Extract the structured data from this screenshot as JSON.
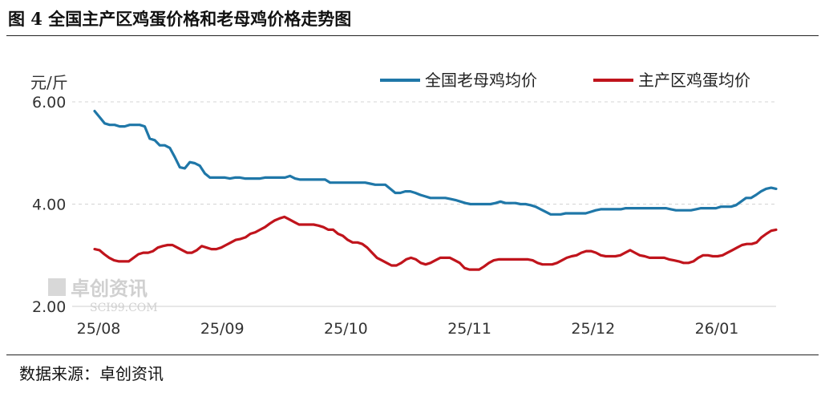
{
  "title": "图 4 全国主产区鸡蛋价格和老母鸡价格走势图",
  "source": "数据来源：卓创资讯",
  "watermark": {
    "text": "卓创资讯",
    "subtext": "SCI99.COM"
  },
  "chart_data": {
    "type": "line",
    "ylabel": "元/斤",
    "ylim": [
      2.0,
      6.0
    ],
    "yticks": [
      "2.00",
      "4.00",
      "6.00"
    ],
    "xticks": [
      "25/08",
      "25/09",
      "25/10",
      "25/11",
      "25/12",
      "26/01"
    ],
    "grid": true,
    "legend_position": "top-right",
    "series": [
      {
        "name": "全国老母鸡均价",
        "color": "#1f77a8",
        "values": [
          5.82,
          5.7,
          5.58,
          5.55,
          5.55,
          5.52,
          5.52,
          5.55,
          5.55,
          5.55,
          5.52,
          5.28,
          5.25,
          5.15,
          5.15,
          5.1,
          4.92,
          4.72,
          4.7,
          4.82,
          4.8,
          4.75,
          4.6,
          4.52,
          4.52,
          4.52,
          4.52,
          4.5,
          4.52,
          4.52,
          4.5,
          4.5,
          4.5,
          4.5,
          4.52,
          4.52,
          4.52,
          4.52,
          4.52,
          4.55,
          4.5,
          4.48,
          4.48,
          4.48,
          4.48,
          4.48,
          4.48,
          4.42,
          4.42,
          4.42,
          4.42,
          4.42,
          4.42,
          4.42,
          4.42,
          4.4,
          4.38,
          4.38,
          4.38,
          4.3,
          4.22,
          4.22,
          4.25,
          4.25,
          4.22,
          4.18,
          4.15,
          4.12,
          4.12,
          4.12,
          4.12,
          4.1,
          4.08,
          4.05,
          4.02,
          4.0,
          4.0,
          4.0,
          4.0,
          4.0,
          4.02,
          4.05,
          4.02,
          4.02,
          4.02,
          4.0,
          4.0,
          3.98,
          3.95,
          3.9,
          3.85,
          3.8,
          3.8,
          3.8,
          3.82,
          3.82,
          3.82,
          3.82,
          3.82,
          3.85,
          3.88,
          3.9,
          3.9,
          3.9,
          3.9,
          3.9,
          3.92,
          3.92,
          3.92,
          3.92,
          3.92,
          3.92,
          3.92,
          3.92,
          3.92,
          3.9,
          3.88,
          3.88,
          3.88,
          3.88,
          3.9,
          3.92,
          3.92,
          3.92,
          3.92,
          3.95,
          3.95,
          3.95,
          3.98,
          4.05,
          4.12,
          4.12,
          4.18,
          4.25,
          4.3,
          4.32,
          4.3
        ]
      },
      {
        "name": "主产区鸡蛋均价",
        "color": "#c0141c",
        "values": [
          3.12,
          3.1,
          3.02,
          2.95,
          2.9,
          2.88,
          2.88,
          2.88,
          2.95,
          3.02,
          3.05,
          3.05,
          3.08,
          3.15,
          3.18,
          3.2,
          3.2,
          3.15,
          3.1,
          3.05,
          3.05,
          3.1,
          3.18,
          3.15,
          3.12,
          3.12,
          3.15,
          3.2,
          3.25,
          3.3,
          3.32,
          3.35,
          3.42,
          3.45,
          3.5,
          3.55,
          3.62,
          3.68,
          3.72,
          3.75,
          3.7,
          3.65,
          3.6,
          3.6,
          3.6,
          3.6,
          3.58,
          3.55,
          3.5,
          3.5,
          3.42,
          3.38,
          3.3,
          3.25,
          3.25,
          3.22,
          3.15,
          3.05,
          2.95,
          2.9,
          2.85,
          2.8,
          2.8,
          2.85,
          2.92,
          2.95,
          2.92,
          2.85,
          2.82,
          2.85,
          2.9,
          2.95,
          2.95,
          2.95,
          2.9,
          2.85,
          2.75,
          2.72,
          2.72,
          2.72,
          2.78,
          2.85,
          2.9,
          2.92,
          2.92,
          2.92,
          2.92,
          2.92,
          2.92,
          2.92,
          2.9,
          2.85,
          2.82,
          2.82,
          2.82,
          2.85,
          2.9,
          2.95,
          2.98,
          3.0,
          3.05,
          3.08,
          3.08,
          3.05,
          3.0,
          2.98,
          2.98,
          2.98,
          3.0,
          3.05,
          3.1,
          3.05,
          3.0,
          2.98,
          2.95,
          2.95,
          2.95,
          2.95,
          2.92,
          2.9,
          2.88,
          2.85,
          2.85,
          2.88,
          2.95,
          3.0,
          3.0,
          2.98,
          2.98,
          3.0,
          3.05,
          3.1,
          3.15,
          3.2,
          3.22,
          3.22,
          3.25,
          3.35,
          3.42,
          3.48,
          3.5
        ]
      }
    ]
  }
}
